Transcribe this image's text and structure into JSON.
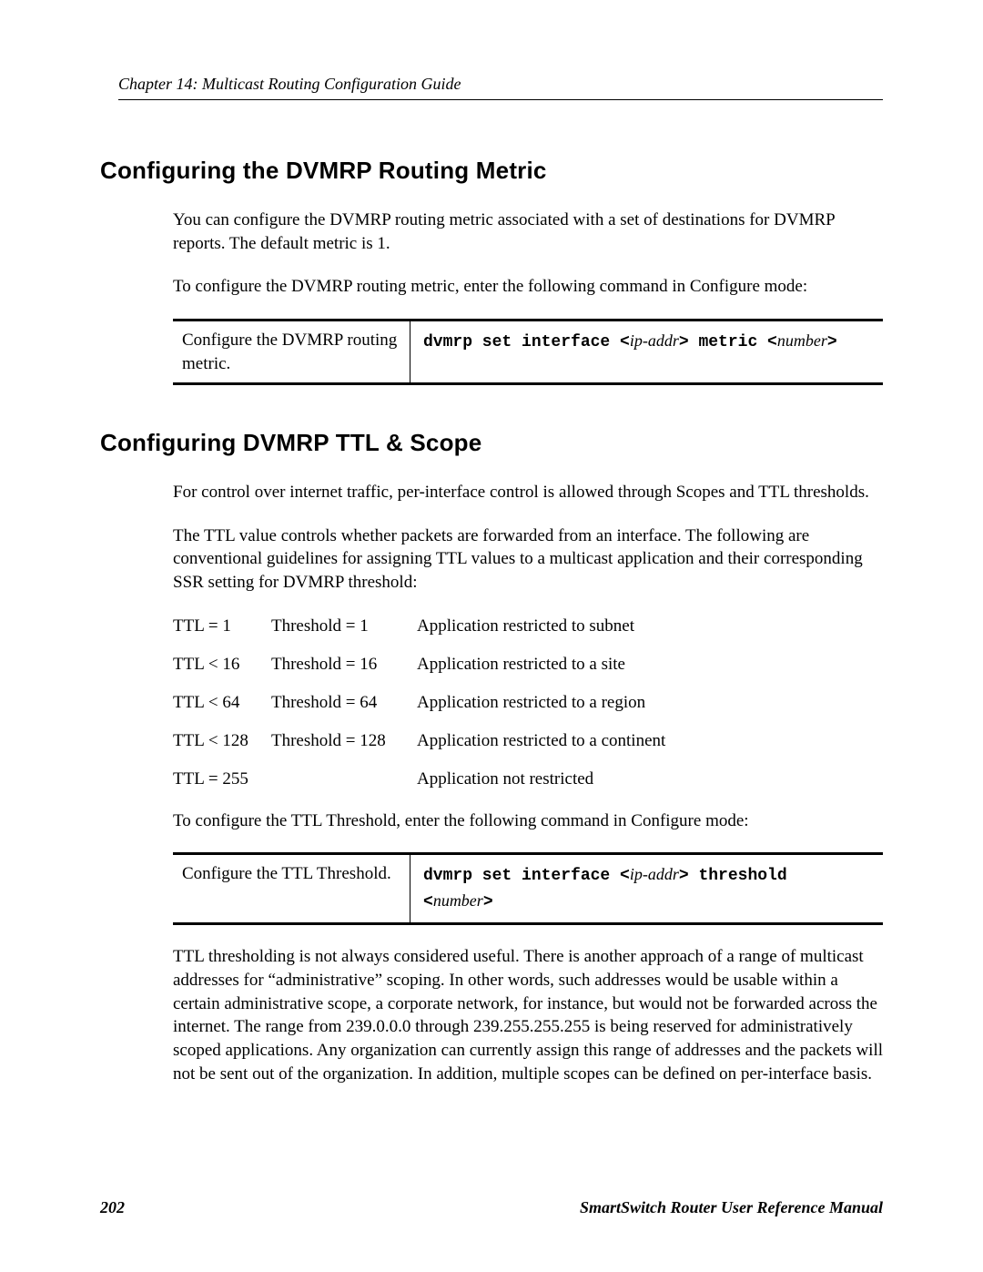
{
  "header": {
    "running_head": "Chapter 14: Multicast Routing Configuration Guide"
  },
  "section1": {
    "heading": "Configuring the DVMRP Routing Metric",
    "p1": "You can configure the DVMRP routing metric associated with a set of destinations for DVMRP reports. The default metric is 1.",
    "p2": "To configure the DVMRP routing metric, enter the following command in Configure mode:",
    "cmd_desc": "Configure the DVMRP routing metric.",
    "cmd_pre1": "dvmrp set interface <",
    "cmd_arg1": "ip-addr",
    "cmd_mid1": "> metric <",
    "cmd_arg2": "number",
    "cmd_post1": ">"
  },
  "section2": {
    "heading": "Configuring DVMRP TTL & Scope",
    "p1": "For control over internet traffic, per-interface control is allowed through Scopes and TTL thresholds.",
    "p2": "The TTL value controls whether packets are forwarded from an interface. The following are conventional guidelines for assigning TTL values to a multicast application and their corresponding SSR setting for DVMRP threshold:",
    "ttl": [
      {
        "c1": "TTL = 1",
        "c2": "Threshold = 1",
        "c3": "Application restricted to subnet"
      },
      {
        "c1": "TTL < 16",
        "c2": "Threshold = 16",
        "c3": "Application restricted to a site"
      },
      {
        "c1": "TTL < 64",
        "c2": "Threshold = 64",
        "c3": "Application restricted to a region"
      },
      {
        "c1": "TTL < 128",
        "c2": "Threshold = 128",
        "c3": "Application restricted to a continent"
      },
      {
        "c1": "TTL = 255",
        "c2": "",
        "c3": "Application not restricted"
      }
    ],
    "p3": "To configure the TTL Threshold, enter the following command in Configure mode:",
    "cmd_desc": "Configure the TTL Threshold.",
    "cmd_pre1": "dvmrp set interface <",
    "cmd_arg1": "ip-addr",
    "cmd_mid1": "> threshold",
    "cmd_line2_pre": "<",
    "cmd_line2_arg": "number",
    "cmd_line2_post": ">",
    "p4": "TTL thresholding is not always considered useful. There is another approach of a range of multicast addresses for “administrative” scoping. In other words, such addresses would be usable within a certain administrative scope, a corporate network, for instance, but would not be forwarded across the internet. The range from 239.0.0.0 through 239.255.255.255 is being reserved for administratively scoped applications. Any organization can currently assign this range of addresses and the packets will not be sent out of the organization. In addition, multiple scopes can be defined on per-interface basis."
  },
  "footer": {
    "page_number": "202",
    "manual_title": "SmartSwitch Router User Reference Manual"
  }
}
